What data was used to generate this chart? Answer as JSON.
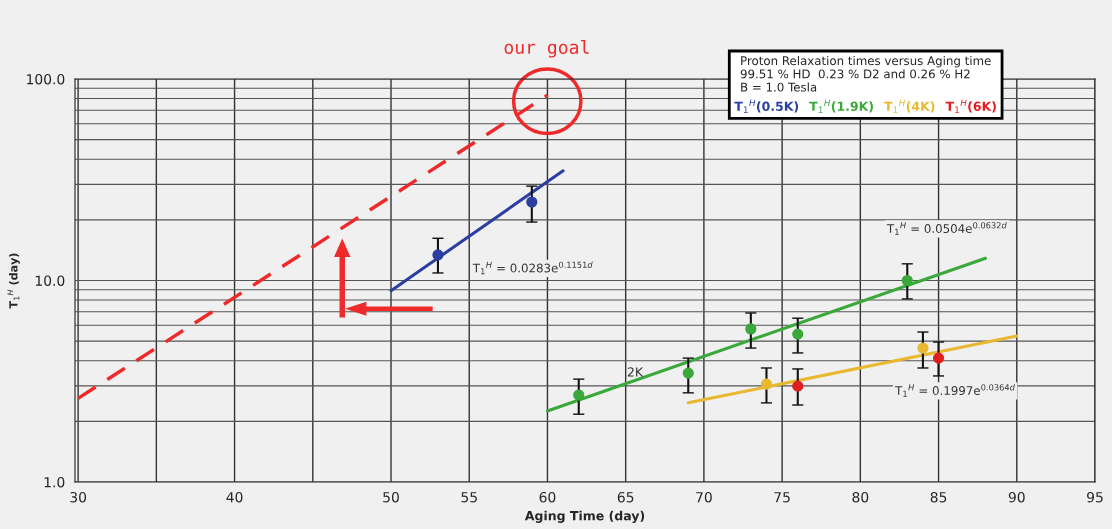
{
  "chart_data": {
    "type": "scatter",
    "title": "Proton Relaxation times versus Aging time",
    "subtitle": "99.51 % HD  0.23 % D2 and 0.26 % H2\nB = 1.0 Tesla",
    "xlabel": "Aging Time (day)",
    "ylabel": "T$_{1}$$^{H}$ (day)",
    "series": [
      {
        "type": "line",
        "name": "T$_{1}$$^{H}$(0.5K)",
        "color": "#2b3fa0",
        "x": [
          50,
          61
        ],
        "values": [
          8.9,
          35
        ]
      },
      {
        "type": "line",
        "name": "T$_{1}$$^{H}$(1.9K)",
        "color": "#3aa83a",
        "x": [
          60,
          88
        ],
        "values": [
          2.25,
          12.9
        ]
      },
      {
        "type": "line",
        "name": "T$_{1}$$^{H}$(4K)",
        "color": "#e8b830",
        "x": [
          69,
          90
        ],
        "values": [
          2.47,
          5.3
        ]
      },
      {
        "name": "T$_{1}$$^{H}$(6K)",
        "color": "#e02020",
        "x": [
          76,
          85
        ],
        "values": [
          2.99,
          4.12
        ],
        "errors": [
          [
            2.41,
            3.64
          ],
          [
            3.36,
            4.95
          ]
        ],
        "marker": "circle"
      },
      {
        "color": "#2b3fa0",
        "x": [
          53,
          59
        ],
        "values": [
          13.4,
          24.5
        ],
        "errors": [
          [
            10.9,
            16.2
          ],
          [
            19.5,
            29.4
          ]
        ],
        "marker": "circle"
      },
      {
        "color": "#3aa83a",
        "x": [
          62,
          69,
          73,
          76,
          83
        ],
        "values": [
          2.7,
          3.47,
          5.75,
          5.42,
          10.0
        ],
        "errors": [
          [
            2.17,
            3.24
          ],
          [
            2.77,
            4.12
          ],
          [
            4.62,
            6.9
          ],
          [
            4.37,
            6.5
          ],
          [
            8.1,
            12.1
          ]
        ],
        "marker": "circle"
      },
      {
        "color": "#e8b830",
        "x": [
          74,
          84
        ],
        "values": [
          3.06,
          4.62
        ],
        "errors": [
          [
            2.47,
            3.68
          ],
          [
            3.68,
            5.55
          ]
        ],
        "marker": "circle"
      },
      {
        "type": "line",
        "color": "#ee2a2a",
        "x": [
          30,
          60
        ],
        "values": [
          2.6,
          83
        ],
        "line_style": "dashed"
      }
    ],
    "annotations": [
      "T$_{1}$$^{H}$ = 0.0283e$^{0.1151d}$",
      "T$_{1}$$^{H}$ = 0.0504e$^{0.0632d}$",
      "T$_{1}$$^{H}$ = 0.1997e$^{0.0364d}$",
      {
        "text": "2K",
        "x": 67.0,
        "y": 3.47
      },
      "our goal"
    ],
    "log": "y",
    "xlim": [
      29.8,
      95
    ],
    "ylim": [
      1,
      100
    ],
    "xticks": [
      30,
      {
        "value": 35,
        "label": null
      },
      40,
      {
        "value": 45,
        "label": null
      },
      50,
      55,
      60,
      65,
      70,
      75,
      80,
      85,
      90,
      95
    ],
    "yticks": [
      {
        "value": 1,
        "label": "1.0"
      },
      {
        "value": 10,
        "label": "10.0"
      },
      {
        "value": 100,
        "label": "100.0"
      }
    ],
    "grid": true,
    "legend": "top right"
  }
}
